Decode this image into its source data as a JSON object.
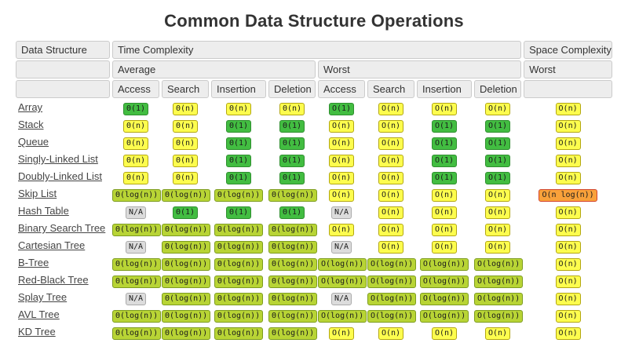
{
  "title": "Common Data Structure Operations",
  "colors": {
    "green_bg": "#42BD41",
    "green_border": "#2F8F2F",
    "yellowgreen_bg": "#B8D435",
    "yellowgreen_border": "#7D9C1F",
    "yellow_bg": "#FDFD4E",
    "yellow_border": "#B3A712",
    "orange_bg": "#F9A13A",
    "orange_border": "#D2442C",
    "gray_bg": "#DCDCDC",
    "gray_border": "#ABABAB",
    "header_bg": "#EDEDED",
    "header_border": "#CBCBCB",
    "link_color": "#454545",
    "title_color": "#333333"
  },
  "table": {
    "group_headers": {
      "data_structure": "Data Structure",
      "time_complexity": "Time Complexity",
      "space_complexity": "Space Complexity"
    },
    "sub_headers": {
      "average": "Average",
      "worst_time": "Worst",
      "worst_space": "Worst"
    },
    "operations": [
      "Access",
      "Search",
      "Insertion",
      "Deletion",
      "Access",
      "Search",
      "Insertion",
      "Deletion"
    ],
    "rows": [
      {
        "name": "Array",
        "slug": "array",
        "cells": [
          {
            "t": "Θ(1)",
            "c": "green"
          },
          {
            "t": "Θ(n)",
            "c": "yellow"
          },
          {
            "t": "Θ(n)",
            "c": "yellow"
          },
          {
            "t": "Θ(n)",
            "c": "yellow"
          },
          {
            "t": "O(1)",
            "c": "green"
          },
          {
            "t": "O(n)",
            "c": "yellow"
          },
          {
            "t": "O(n)",
            "c": "yellow"
          },
          {
            "t": "O(n)",
            "c": "yellow"
          },
          {
            "t": "O(n)",
            "c": "yellow"
          }
        ]
      },
      {
        "name": "Stack",
        "slug": "stack",
        "cells": [
          {
            "t": "Θ(n)",
            "c": "yellow"
          },
          {
            "t": "Θ(n)",
            "c": "yellow"
          },
          {
            "t": "Θ(1)",
            "c": "green"
          },
          {
            "t": "Θ(1)",
            "c": "green"
          },
          {
            "t": "O(n)",
            "c": "yellow"
          },
          {
            "t": "O(n)",
            "c": "yellow"
          },
          {
            "t": "O(1)",
            "c": "green"
          },
          {
            "t": "O(1)",
            "c": "green"
          },
          {
            "t": "O(n)",
            "c": "yellow"
          }
        ]
      },
      {
        "name": "Queue",
        "slug": "queue",
        "cells": [
          {
            "t": "Θ(n)",
            "c": "yellow"
          },
          {
            "t": "Θ(n)",
            "c": "yellow"
          },
          {
            "t": "Θ(1)",
            "c": "green"
          },
          {
            "t": "Θ(1)",
            "c": "green"
          },
          {
            "t": "O(n)",
            "c": "yellow"
          },
          {
            "t": "O(n)",
            "c": "yellow"
          },
          {
            "t": "O(1)",
            "c": "green"
          },
          {
            "t": "O(1)",
            "c": "green"
          },
          {
            "t": "O(n)",
            "c": "yellow"
          }
        ]
      },
      {
        "name": "Singly-Linked List",
        "slug": "singly-linked-list",
        "cells": [
          {
            "t": "Θ(n)",
            "c": "yellow"
          },
          {
            "t": "Θ(n)",
            "c": "yellow"
          },
          {
            "t": "Θ(1)",
            "c": "green"
          },
          {
            "t": "Θ(1)",
            "c": "green"
          },
          {
            "t": "O(n)",
            "c": "yellow"
          },
          {
            "t": "O(n)",
            "c": "yellow"
          },
          {
            "t": "O(1)",
            "c": "green"
          },
          {
            "t": "O(1)",
            "c": "green"
          },
          {
            "t": "O(n)",
            "c": "yellow"
          }
        ]
      },
      {
        "name": "Doubly-Linked List",
        "slug": "doubly-linked-list",
        "cells": [
          {
            "t": "Θ(n)",
            "c": "yellow"
          },
          {
            "t": "Θ(n)",
            "c": "yellow"
          },
          {
            "t": "Θ(1)",
            "c": "green"
          },
          {
            "t": "Θ(1)",
            "c": "green"
          },
          {
            "t": "O(n)",
            "c": "yellow"
          },
          {
            "t": "O(n)",
            "c": "yellow"
          },
          {
            "t": "O(1)",
            "c": "green"
          },
          {
            "t": "O(1)",
            "c": "green"
          },
          {
            "t": "O(n)",
            "c": "yellow"
          }
        ]
      },
      {
        "name": "Skip List",
        "slug": "skip-list",
        "cells": [
          {
            "t": "Θ(log(n))",
            "c": "yellowgreen"
          },
          {
            "t": "Θ(log(n))",
            "c": "yellowgreen"
          },
          {
            "t": "Θ(log(n))",
            "c": "yellowgreen"
          },
          {
            "t": "Θ(log(n))",
            "c": "yellowgreen"
          },
          {
            "t": "O(n)",
            "c": "yellow"
          },
          {
            "t": "O(n)",
            "c": "yellow"
          },
          {
            "t": "O(n)",
            "c": "yellow"
          },
          {
            "t": "O(n)",
            "c": "yellow"
          },
          {
            "t": "O(n log(n))",
            "c": "orange"
          }
        ]
      },
      {
        "name": "Hash Table",
        "slug": "hash-table",
        "cells": [
          {
            "t": "N/A",
            "c": "gray"
          },
          {
            "t": "Θ(1)",
            "c": "green"
          },
          {
            "t": "Θ(1)",
            "c": "green"
          },
          {
            "t": "Θ(1)",
            "c": "green"
          },
          {
            "t": "N/A",
            "c": "gray"
          },
          {
            "t": "O(n)",
            "c": "yellow"
          },
          {
            "t": "O(n)",
            "c": "yellow"
          },
          {
            "t": "O(n)",
            "c": "yellow"
          },
          {
            "t": "O(n)",
            "c": "yellow"
          }
        ]
      },
      {
        "name": "Binary Search Tree",
        "slug": "binary-search-tree",
        "cells": [
          {
            "t": "Θ(log(n))",
            "c": "yellowgreen"
          },
          {
            "t": "Θ(log(n))",
            "c": "yellowgreen"
          },
          {
            "t": "Θ(log(n))",
            "c": "yellowgreen"
          },
          {
            "t": "Θ(log(n))",
            "c": "yellowgreen"
          },
          {
            "t": "O(n)",
            "c": "yellow"
          },
          {
            "t": "O(n)",
            "c": "yellow"
          },
          {
            "t": "O(n)",
            "c": "yellow"
          },
          {
            "t": "O(n)",
            "c": "yellow"
          },
          {
            "t": "O(n)",
            "c": "yellow"
          }
        ]
      },
      {
        "name": "Cartesian Tree",
        "slug": "cartesian-tree",
        "cells": [
          {
            "t": "N/A",
            "c": "gray"
          },
          {
            "t": "Θ(log(n))",
            "c": "yellowgreen"
          },
          {
            "t": "Θ(log(n))",
            "c": "yellowgreen"
          },
          {
            "t": "Θ(log(n))",
            "c": "yellowgreen"
          },
          {
            "t": "N/A",
            "c": "gray"
          },
          {
            "t": "O(n)",
            "c": "yellow"
          },
          {
            "t": "O(n)",
            "c": "yellow"
          },
          {
            "t": "O(n)",
            "c": "yellow"
          },
          {
            "t": "O(n)",
            "c": "yellow"
          }
        ]
      },
      {
        "name": "B-Tree",
        "slug": "b-tree",
        "cells": [
          {
            "t": "Θ(log(n))",
            "c": "yellowgreen"
          },
          {
            "t": "Θ(log(n))",
            "c": "yellowgreen"
          },
          {
            "t": "Θ(log(n))",
            "c": "yellowgreen"
          },
          {
            "t": "Θ(log(n))",
            "c": "yellowgreen"
          },
          {
            "t": "O(log(n))",
            "c": "yellowgreen"
          },
          {
            "t": "O(log(n))",
            "c": "yellowgreen"
          },
          {
            "t": "O(log(n))",
            "c": "yellowgreen"
          },
          {
            "t": "O(log(n))",
            "c": "yellowgreen"
          },
          {
            "t": "O(n)",
            "c": "yellow"
          }
        ]
      },
      {
        "name": "Red-Black Tree",
        "slug": "red-black-tree",
        "cells": [
          {
            "t": "Θ(log(n))",
            "c": "yellowgreen"
          },
          {
            "t": "Θ(log(n))",
            "c": "yellowgreen"
          },
          {
            "t": "Θ(log(n))",
            "c": "yellowgreen"
          },
          {
            "t": "Θ(log(n))",
            "c": "yellowgreen"
          },
          {
            "t": "O(log(n))",
            "c": "yellowgreen"
          },
          {
            "t": "O(log(n))",
            "c": "yellowgreen"
          },
          {
            "t": "O(log(n))",
            "c": "yellowgreen"
          },
          {
            "t": "O(log(n))",
            "c": "yellowgreen"
          },
          {
            "t": "O(n)",
            "c": "yellow"
          }
        ]
      },
      {
        "name": "Splay Tree",
        "slug": "splay-tree",
        "cells": [
          {
            "t": "N/A",
            "c": "gray"
          },
          {
            "t": "Θ(log(n))",
            "c": "yellowgreen"
          },
          {
            "t": "Θ(log(n))",
            "c": "yellowgreen"
          },
          {
            "t": "Θ(log(n))",
            "c": "yellowgreen"
          },
          {
            "t": "N/A",
            "c": "gray"
          },
          {
            "t": "O(log(n))",
            "c": "yellowgreen"
          },
          {
            "t": "O(log(n))",
            "c": "yellowgreen"
          },
          {
            "t": "O(log(n))",
            "c": "yellowgreen"
          },
          {
            "t": "O(n)",
            "c": "yellow"
          }
        ]
      },
      {
        "name": "AVL Tree",
        "slug": "avl-tree",
        "cells": [
          {
            "t": "Θ(log(n))",
            "c": "yellowgreen"
          },
          {
            "t": "Θ(log(n))",
            "c": "yellowgreen"
          },
          {
            "t": "Θ(log(n))",
            "c": "yellowgreen"
          },
          {
            "t": "Θ(log(n))",
            "c": "yellowgreen"
          },
          {
            "t": "O(log(n))",
            "c": "yellowgreen"
          },
          {
            "t": "O(log(n))",
            "c": "yellowgreen"
          },
          {
            "t": "O(log(n))",
            "c": "yellowgreen"
          },
          {
            "t": "O(log(n))",
            "c": "yellowgreen"
          },
          {
            "t": "O(n)",
            "c": "yellow"
          }
        ]
      },
      {
        "name": "KD Tree",
        "slug": "kd-tree",
        "cells": [
          {
            "t": "Θ(log(n))",
            "c": "yellowgreen"
          },
          {
            "t": "Θ(log(n))",
            "c": "yellowgreen"
          },
          {
            "t": "Θ(log(n))",
            "c": "yellowgreen"
          },
          {
            "t": "Θ(log(n))",
            "c": "yellowgreen"
          },
          {
            "t": "O(n)",
            "c": "yellow"
          },
          {
            "t": "O(n)",
            "c": "yellow"
          },
          {
            "t": "O(n)",
            "c": "yellow"
          },
          {
            "t": "O(n)",
            "c": "yellow"
          },
          {
            "t": "O(n)",
            "c": "yellow"
          }
        ]
      }
    ]
  }
}
